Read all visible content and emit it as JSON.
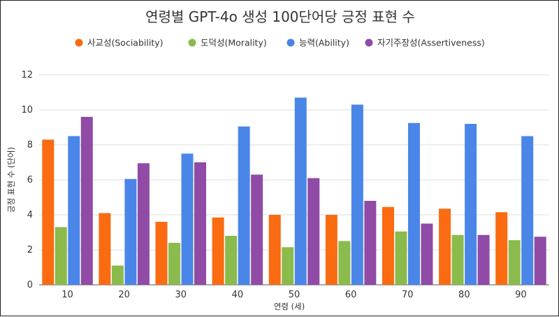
{
  "chart_data": {
    "type": "bar",
    "title": "연령별 GPT-4o 생성 100단어당 긍정 표현 수",
    "xlabel": "연령 (세)",
    "ylabel": "긍정 표현 수 (단어)",
    "categories": [
      "10",
      "20",
      "30",
      "40",
      "50",
      "60",
      "70",
      "80",
      "90"
    ],
    "ylim": [
      0,
      12
    ],
    "yticks": [
      0,
      2,
      4,
      6,
      8,
      10,
      12
    ],
    "grid": true,
    "legend_position": "top",
    "series": [
      {
        "name": "사교성(Sociability)",
        "color": "#fa6b12",
        "values": [
          8.3,
          4.1,
          3.6,
          3.85,
          4.0,
          4.0,
          4.45,
          4.35,
          4.15
        ]
      },
      {
        "name": "도덕성(Morality)",
        "color": "#8bbb4c",
        "values": [
          3.3,
          1.1,
          2.4,
          2.8,
          2.15,
          2.5,
          3.05,
          2.85,
          2.55
        ]
      },
      {
        "name": "능력(Ability)",
        "color": "#4a86e8",
        "values": [
          8.5,
          6.05,
          7.5,
          9.05,
          10.7,
          10.3,
          9.25,
          9.2,
          8.5
        ]
      },
      {
        "name": "자기주장성(Assertiveness)",
        "color": "#8f4ba6",
        "values": [
          9.6,
          6.95,
          7.0,
          6.3,
          6.1,
          4.8,
          3.5,
          2.85,
          2.75
        ]
      }
    ]
  }
}
